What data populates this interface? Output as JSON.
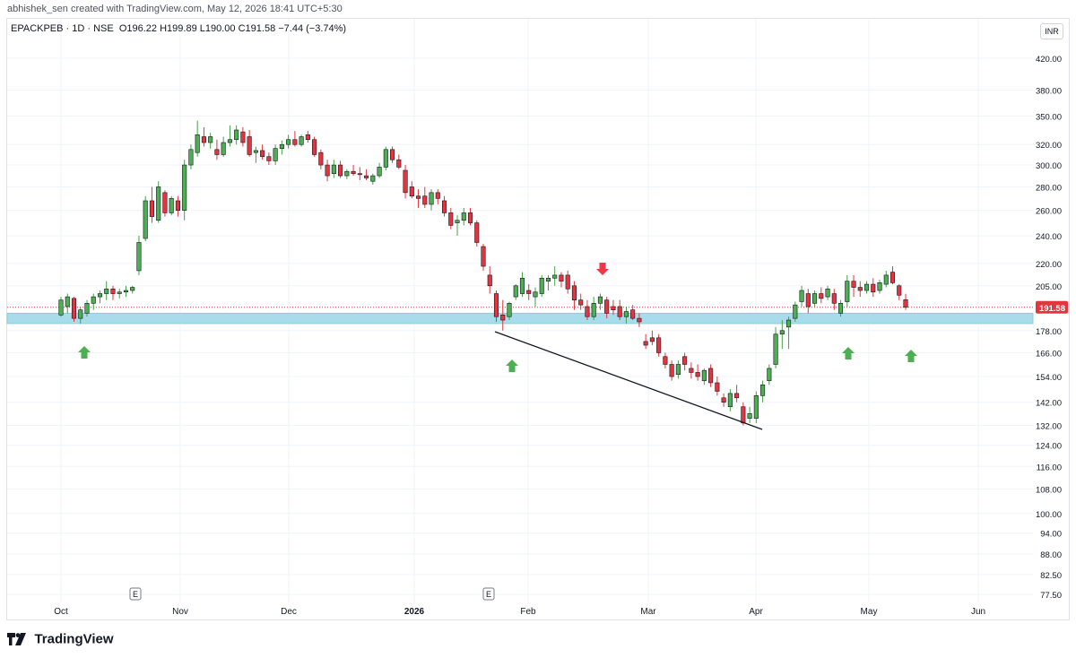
{
  "header": {
    "credit": "abhishek_sen created with TradingView.com, May 12, 2026 18:41 UTC+5:30"
  },
  "legend": {
    "symbol": "EPACKPEB · 1D · NSE",
    "open": "O196.22",
    "high": "H199.89",
    "low": "L190.00",
    "close": "C191.58",
    "change": "−7.44 (−3.74%)"
  },
  "currency": "INR",
  "footer": {
    "brand": "TradingView"
  },
  "colors": {
    "up": "#4caf50",
    "down": "#e4353f",
    "support_zone": "#a9dcea",
    "price_line": "#e4353f",
    "arrow_up": "#4caf50",
    "arrow_down": "#f23645"
  },
  "chart_data": {
    "type": "candlestick",
    "y_scale": "log",
    "ylim": [
      74,
      450
    ],
    "y_ticks": [
      "420.00",
      "380.00",
      "350.00",
      "320.00",
      "300.00",
      "280.00",
      "260.00",
      "240.00",
      "220.00",
      "205.00",
      "178.00",
      "166.00",
      "154.00",
      "142.00",
      "132.00",
      "124.00",
      "116.00",
      "108.00",
      "100.00",
      "94.00",
      "88.00",
      "82.50",
      "77.50"
    ],
    "x_labels": [
      "Oct",
      "Nov",
      "Dec",
      "2026",
      "Feb",
      "Mar",
      "Apr",
      "May",
      "Jun"
    ],
    "last_price": "191.58",
    "support_zone": [
      182,
      188
    ],
    "earnings_markers": [
      "E",
      "E"
    ],
    "candles": [
      {
        "o": 187,
        "h": 198,
        "l": 186,
        "c": 196
      },
      {
        "o": 192,
        "h": 200,
        "l": 188,
        "c": 198
      },
      {
        "o": 197,
        "h": 198,
        "l": 183,
        "c": 185
      },
      {
        "o": 185,
        "h": 192,
        "l": 182,
        "c": 190
      },
      {
        "o": 188,
        "h": 196,
        "l": 186,
        "c": 194
      },
      {
        "o": 194,
        "h": 200,
        "l": 190,
        "c": 198
      },
      {
        "o": 198,
        "h": 202,
        "l": 194,
        "c": 200
      },
      {
        "o": 200,
        "h": 208,
        "l": 196,
        "c": 203
      },
      {
        "o": 203,
        "h": 205,
        "l": 196,
        "c": 200
      },
      {
        "o": 200,
        "h": 203,
        "l": 197,
        "c": 201
      },
      {
        "o": 201,
        "h": 205,
        "l": 198,
        "c": 202
      },
      {
        "o": 202,
        "h": 205,
        "l": 200,
        "c": 204
      },
      {
        "o": 215,
        "h": 240,
        "l": 212,
        "c": 235
      },
      {
        "o": 238,
        "h": 272,
        "l": 236,
        "c": 268
      },
      {
        "o": 268,
        "h": 280,
        "l": 250,
        "c": 255
      },
      {
        "o": 252,
        "h": 285,
        "l": 250,
        "c": 280
      },
      {
        "o": 275,
        "h": 277,
        "l": 255,
        "c": 258
      },
      {
        "o": 258,
        "h": 272,
        "l": 256,
        "c": 270
      },
      {
        "o": 268,
        "h": 272,
        "l": 255,
        "c": 260
      },
      {
        "o": 260,
        "h": 305,
        "l": 252,
        "c": 300
      },
      {
        "o": 300,
        "h": 320,
        "l": 296,
        "c": 315
      },
      {
        "o": 312,
        "h": 345,
        "l": 308,
        "c": 330
      },
      {
        "o": 328,
        "h": 338,
        "l": 318,
        "c": 322
      },
      {
        "o": 322,
        "h": 332,
        "l": 316,
        "c": 328
      },
      {
        "o": 315,
        "h": 325,
        "l": 305,
        "c": 310
      },
      {
        "o": 310,
        "h": 328,
        "l": 308,
        "c": 322
      },
      {
        "o": 322,
        "h": 340,
        "l": 318,
        "c": 325
      },
      {
        "o": 325,
        "h": 340,
        "l": 320,
        "c": 335
      },
      {
        "o": 333,
        "h": 338,
        "l": 318,
        "c": 322
      },
      {
        "o": 328,
        "h": 335,
        "l": 308,
        "c": 310
      },
      {
        "o": 312,
        "h": 318,
        "l": 302,
        "c": 314
      },
      {
        "o": 314,
        "h": 320,
        "l": 305,
        "c": 308
      },
      {
        "o": 308,
        "h": 312,
        "l": 300,
        "c": 304
      },
      {
        "o": 304,
        "h": 320,
        "l": 300,
        "c": 316
      },
      {
        "o": 316,
        "h": 324,
        "l": 310,
        "c": 320
      },
      {
        "o": 320,
        "h": 330,
        "l": 316,
        "c": 325
      },
      {
        "o": 325,
        "h": 334,
        "l": 318,
        "c": 320
      },
      {
        "o": 320,
        "h": 330,
        "l": 318,
        "c": 328
      },
      {
        "o": 330,
        "h": 334,
        "l": 322,
        "c": 325
      },
      {
        "o": 325,
        "h": 328,
        "l": 308,
        "c": 310
      },
      {
        "o": 312,
        "h": 315,
        "l": 296,
        "c": 300
      },
      {
        "o": 300,
        "h": 305,
        "l": 285,
        "c": 290
      },
      {
        "o": 292,
        "h": 305,
        "l": 288,
        "c": 300
      },
      {
        "o": 300,
        "h": 304,
        "l": 288,
        "c": 290
      },
      {
        "o": 290,
        "h": 296,
        "l": 287,
        "c": 294
      },
      {
        "o": 294,
        "h": 300,
        "l": 290,
        "c": 292
      },
      {
        "o": 292,
        "h": 298,
        "l": 286,
        "c": 291
      },
      {
        "o": 290,
        "h": 296,
        "l": 286,
        "c": 288
      },
      {
        "o": 285,
        "h": 292,
        "l": 282,
        "c": 290
      },
      {
        "o": 290,
        "h": 302,
        "l": 288,
        "c": 298
      },
      {
        "o": 298,
        "h": 318,
        "l": 295,
        "c": 315
      },
      {
        "o": 315,
        "h": 318,
        "l": 302,
        "c": 305
      },
      {
        "o": 305,
        "h": 310,
        "l": 296,
        "c": 298
      },
      {
        "o": 295,
        "h": 300,
        "l": 270,
        "c": 275
      },
      {
        "o": 280,
        "h": 285,
        "l": 270,
        "c": 272
      },
      {
        "o": 272,
        "h": 278,
        "l": 262,
        "c": 270
      },
      {
        "o": 272,
        "h": 280,
        "l": 262,
        "c": 265
      },
      {
        "o": 265,
        "h": 278,
        "l": 260,
        "c": 275
      },
      {
        "o": 275,
        "h": 278,
        "l": 265,
        "c": 270
      },
      {
        "o": 268,
        "h": 272,
        "l": 255,
        "c": 258
      },
      {
        "o": 258,
        "h": 262,
        "l": 245,
        "c": 248
      },
      {
        "o": 250,
        "h": 256,
        "l": 240,
        "c": 252
      },
      {
        "o": 252,
        "h": 262,
        "l": 248,
        "c": 258
      },
      {
        "o": 258,
        "h": 262,
        "l": 248,
        "c": 250
      },
      {
        "o": 250,
        "h": 252,
        "l": 232,
        "c": 235
      },
      {
        "o": 232,
        "h": 234,
        "l": 215,
        "c": 218
      },
      {
        "o": 212,
        "h": 218,
        "l": 200,
        "c": 205
      },
      {
        "o": 200,
        "h": 202,
        "l": 183,
        "c": 186
      },
      {
        "o": 187,
        "h": 196,
        "l": 178,
        "c": 184
      },
      {
        "o": 186,
        "h": 195,
        "l": 184,
        "c": 194
      },
      {
        "o": 198,
        "h": 206,
        "l": 196,
        "c": 205
      },
      {
        "o": 200,
        "h": 214,
        "l": 198,
        "c": 210
      },
      {
        "o": 202,
        "h": 206,
        "l": 196,
        "c": 200
      },
      {
        "o": 198,
        "h": 204,
        "l": 192,
        "c": 201
      },
      {
        "o": 200,
        "h": 212,
        "l": 198,
        "c": 210
      },
      {
        "o": 208,
        "h": 212,
        "l": 202,
        "c": 210
      },
      {
        "o": 210,
        "h": 218,
        "l": 205,
        "c": 212
      },
      {
        "o": 212,
        "h": 214,
        "l": 204,
        "c": 208
      },
      {
        "o": 212,
        "h": 215,
        "l": 200,
        "c": 203
      },
      {
        "o": 205,
        "h": 208,
        "l": 190,
        "c": 196
      },
      {
        "o": 196,
        "h": 200,
        "l": 190,
        "c": 193
      },
      {
        "o": 192,
        "h": 196,
        "l": 184,
        "c": 186
      },
      {
        "o": 186,
        "h": 198,
        "l": 184,
        "c": 194
      },
      {
        "o": 194,
        "h": 200,
        "l": 190,
        "c": 198
      },
      {
        "o": 196,
        "h": 198,
        "l": 185,
        "c": 188
      },
      {
        "o": 192,
        "h": 196,
        "l": 187,
        "c": 190
      },
      {
        "o": 192,
        "h": 196,
        "l": 184,
        "c": 186
      },
      {
        "o": 186,
        "h": 192,
        "l": 182,
        "c": 189
      },
      {
        "o": 190,
        "h": 193,
        "l": 184,
        "c": 185
      },
      {
        "o": 185,
        "h": 188,
        "l": 180,
        "c": 183
      },
      {
        "o": 172,
        "h": 176,
        "l": 168,
        "c": 170
      },
      {
        "o": 174,
        "h": 178,
        "l": 170,
        "c": 172
      },
      {
        "o": 174,
        "h": 176,
        "l": 164,
        "c": 166
      },
      {
        "o": 164,
        "h": 166,
        "l": 158,
        "c": 160
      },
      {
        "o": 160,
        "h": 162,
        "l": 152,
        "c": 154
      },
      {
        "o": 155,
        "h": 162,
        "l": 153,
        "c": 160
      },
      {
        "o": 164,
        "h": 166,
        "l": 157,
        "c": 160
      },
      {
        "o": 158,
        "h": 161,
        "l": 153,
        "c": 156
      },
      {
        "o": 156,
        "h": 160,
        "l": 152,
        "c": 154
      },
      {
        "o": 152,
        "h": 158,
        "l": 150,
        "c": 157
      },
      {
        "o": 158,
        "h": 160,
        "l": 149,
        "c": 151
      },
      {
        "o": 151,
        "h": 154,
        "l": 145,
        "c": 147
      },
      {
        "o": 144,
        "h": 146,
        "l": 140,
        "c": 142
      },
      {
        "o": 140,
        "h": 148,
        "l": 138,
        "c": 146
      },
      {
        "o": 146,
        "h": 150,
        "l": 142,
        "c": 144
      },
      {
        "o": 140,
        "h": 142,
        "l": 132,
        "c": 133
      },
      {
        "o": 135,
        "h": 140,
        "l": 133,
        "c": 137
      },
      {
        "o": 135,
        "h": 147,
        "l": 133,
        "c": 145
      },
      {
        "o": 145,
        "h": 152,
        "l": 142,
        "c": 150
      },
      {
        "o": 152,
        "h": 160,
        "l": 150,
        "c": 158
      },
      {
        "o": 160,
        "h": 180,
        "l": 158,
        "c": 176
      },
      {
        "o": 176,
        "h": 184,
        "l": 168,
        "c": 178
      },
      {
        "o": 180,
        "h": 186,
        "l": 168,
        "c": 184
      },
      {
        "o": 185,
        "h": 195,
        "l": 183,
        "c": 193
      },
      {
        "o": 195,
        "h": 205,
        "l": 192,
        "c": 202
      },
      {
        "o": 200,
        "h": 203,
        "l": 188,
        "c": 192
      },
      {
        "o": 194,
        "h": 202,
        "l": 192,
        "c": 200
      },
      {
        "o": 200,
        "h": 204,
        "l": 194,
        "c": 197
      },
      {
        "o": 198,
        "h": 205,
        "l": 196,
        "c": 203
      },
      {
        "o": 200,
        "h": 203,
        "l": 190,
        "c": 194
      },
      {
        "o": 188,
        "h": 196,
        "l": 186,
        "c": 194
      },
      {
        "o": 195,
        "h": 212,
        "l": 192,
        "c": 208
      },
      {
        "o": 208,
        "h": 212,
        "l": 198,
        "c": 204
      },
      {
        "o": 204,
        "h": 208,
        "l": 198,
        "c": 202
      },
      {
        "o": 202,
        "h": 208,
        "l": 200,
        "c": 206
      },
      {
        "o": 206,
        "h": 210,
        "l": 198,
        "c": 201
      },
      {
        "o": 202,
        "h": 209,
        "l": 200,
        "c": 207
      },
      {
        "o": 206,
        "h": 215,
        "l": 204,
        "c": 212
      },
      {
        "o": 214,
        "h": 218,
        "l": 206,
        "c": 207
      },
      {
        "o": 205,
        "h": 206,
        "l": 196,
        "c": 199
      },
      {
        "o": 196.22,
        "h": 199.89,
        "l": 190,
        "c": 191.58
      }
    ]
  }
}
